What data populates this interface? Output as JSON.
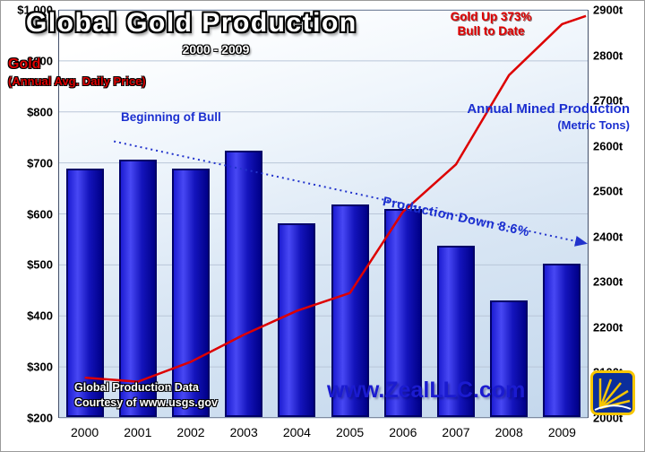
{
  "chart_data": {
    "type": "combo",
    "title": "Global Gold Production",
    "subtitle": "2000 - 2009",
    "categories": [
      "2000",
      "2001",
      "2002",
      "2003",
      "2004",
      "2005",
      "2006",
      "2007",
      "2008",
      "2009"
    ],
    "series": [
      {
        "name": "Annual Mined Production (Metric Tons)",
        "type": "bar",
        "axis": "right",
        "color_main": "#1a1ace",
        "color_dark": "#000082",
        "values": [
          2550,
          2570,
          2550,
          2590,
          2430,
          2470,
          2460,
          2380,
          2260,
          2340
        ]
      },
      {
        "name": "Gold (Annual Avg. Daily Price)",
        "type": "line",
        "axis": "left",
        "color": "#dd0000",
        "values": [
          279,
          271,
          310,
          363,
          410,
          445,
          604,
          697,
          872,
          972
        ],
        "extension": {
          "index": 9.45,
          "value": 988
        }
      }
    ],
    "left_axis": {
      "title": "Gold (Annual Avg. Daily Price)",
      "min": 200,
      "max": 1000,
      "ticks": [
        "$1,000",
        "$900",
        "$800",
        "$700",
        "$600",
        "$500",
        "$400",
        "$300",
        "$200"
      ]
    },
    "right_axis": {
      "title": "Annual Mined Production (Metric Tons)",
      "min": 2000,
      "max": 2900,
      "ticks": [
        "2900t",
        "2800t",
        "2700t",
        "2600t",
        "2500t",
        "2400t",
        "2300t",
        "2200t",
        "2100t",
        "2000t"
      ]
    },
    "trend_line": {
      "label": "Production Down 8.6%",
      "color": "#2233cc",
      "start_index": 0.55,
      "start_tons": 2610,
      "end_index": 9.45,
      "end_tons": 2385
    },
    "annotations": {
      "gold_up_line1": "Gold Up 373%",
      "gold_up_line2": "Bull to Date",
      "beginning_of_bull": "Beginning of Bull",
      "mined_line1": "Annual Mined Production",
      "mined_line2": "(Metric Tons)",
      "gold_line1": "Gold",
      "gold_line2": "(Annual Avg. Daily Price)"
    },
    "watermark": "www.ZealLLC.com",
    "credits": {
      "line1": "Global Production Data",
      "line2": "Courtesy of www.usgs.gov"
    },
    "colors": {
      "annotation_red": "#e00000",
      "annotation_blue": "#1b2fd0",
      "watermark_blue": "#1b1bd0",
      "grid": "#b9c6d8"
    },
    "logo": {
      "blue": "#0b2f9c",
      "gold": "#f7c600"
    }
  }
}
